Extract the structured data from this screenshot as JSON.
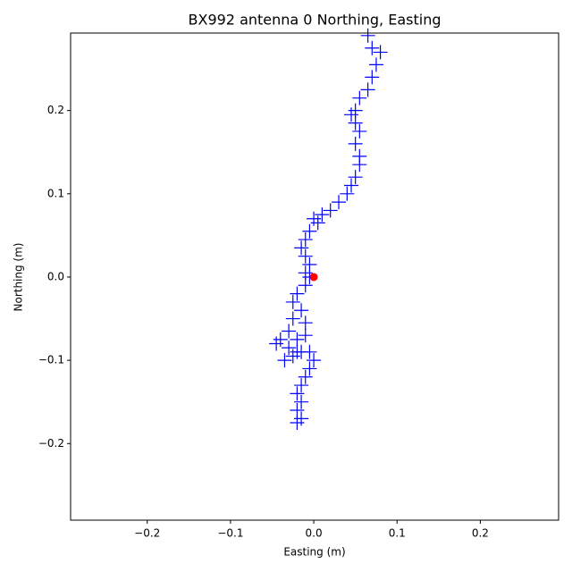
{
  "chart_data": {
    "type": "scatter",
    "title": "BX992 antenna 0 Northing, Easting",
    "x_label": "Easting (m)",
    "y_label": "Northing (m)",
    "xlim": [
      -0.292,
      0.294
    ],
    "ylim": [
      -0.292,
      0.293
    ],
    "xticks": [
      {
        "value": -0.2,
        "label": "−0.2"
      },
      {
        "value": -0.1,
        "label": "−0.1"
      },
      {
        "value": 0,
        "label": "0.0"
      },
      0.1,
      0.2
    ],
    "yticks": [
      {
        "value": -0.2,
        "label": "−0.2"
      },
      {
        "value": -0.1,
        "label": "−0.1"
      },
      {
        "value": 0,
        "label": "0.0"
      },
      0.1,
      0.2
    ],
    "series": [
      {
        "color": "#0000ff",
        "marker": "plus",
        "x": [
          0.065,
          0.07,
          0.08,
          0.075,
          0.07,
          0.065,
          0.055,
          0.05,
          0.045,
          0.05,
          0.055,
          0.05,
          0.055,
          0.055,
          0.05,
          0.045,
          0.04,
          0.03,
          0.02,
          0.01,
          0.0,
          0.005,
          -0.005,
          -0.01,
          -0.015,
          -0.01,
          -0.005,
          -0.01,
          -0.005,
          -0.01,
          -0.02,
          -0.025,
          -0.015,
          -0.025,
          -0.01,
          -0.03,
          -0.04,
          -0.045,
          -0.03,
          -0.02,
          -0.01,
          -0.015,
          -0.025,
          -0.035,
          -0.02,
          -0.005,
          0.0,
          -0.005,
          -0.01,
          -0.015,
          -0.02,
          -0.015,
          -0.02,
          -0.015,
          -0.02
        ],
        "y": [
          0.29,
          0.275,
          0.27,
          0.255,
          0.24,
          0.225,
          0.215,
          0.2,
          0.195,
          0.185,
          0.175,
          0.16,
          0.145,
          0.135,
          0.12,
          0.11,
          0.1,
          0.09,
          0.08,
          0.075,
          0.07,
          0.065,
          0.055,
          0.045,
          0.035,
          0.025,
          0.015,
          0.005,
          0.0,
          -0.01,
          -0.02,
          -0.03,
          -0.04,
          -0.05,
          -0.055,
          -0.065,
          -0.075,
          -0.08,
          -0.085,
          -0.075,
          -0.07,
          -0.09,
          -0.095,
          -0.1,
          -0.09,
          -0.09,
          -0.1,
          -0.11,
          -0.12,
          -0.13,
          -0.14,
          -0.15,
          -0.16,
          -0.17,
          -0.175
        ]
      },
      {
        "color": "#ff0000",
        "marker": "dot",
        "x": [
          0
        ],
        "y": [
          0
        ]
      }
    ]
  }
}
